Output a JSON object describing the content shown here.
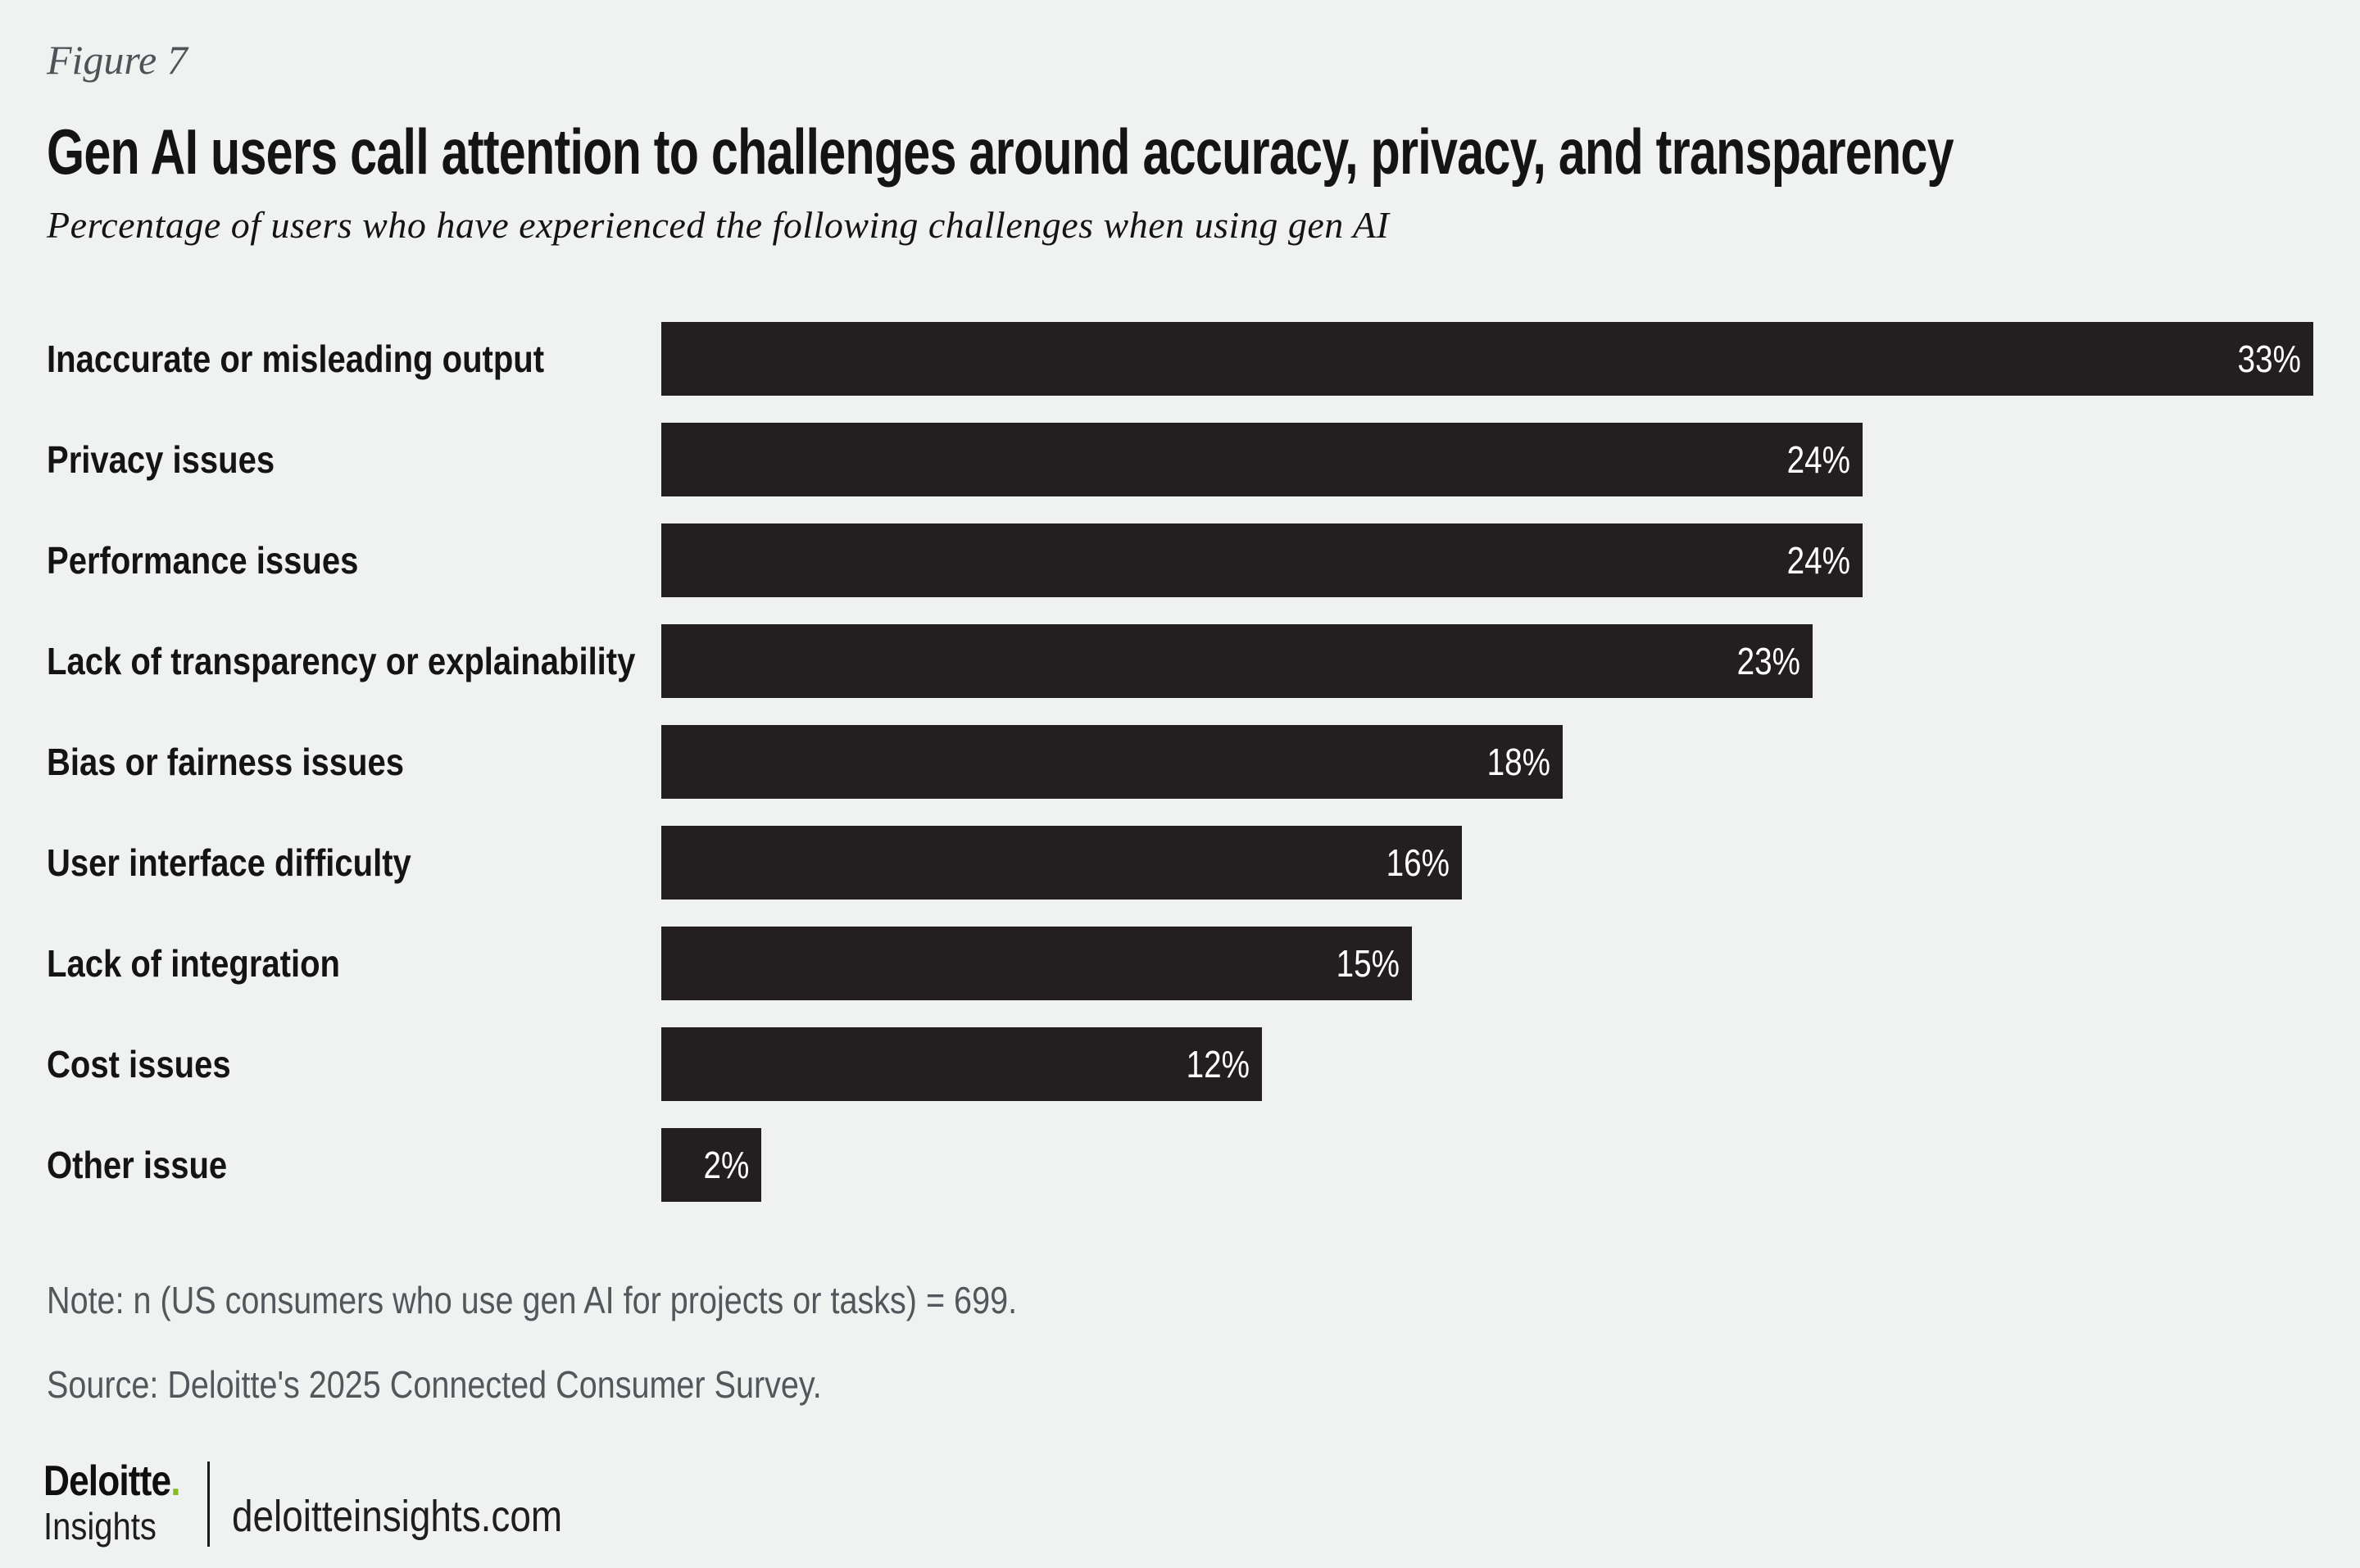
{
  "figure_label": "Figure 7",
  "title": "Gen AI users call attention to challenges around accuracy, privacy, and transparency",
  "subtitle": "Percentage of users who have experienced the following challenges when using gen AI",
  "chart_data": {
    "type": "bar",
    "orientation": "horizontal",
    "categories": [
      "Inaccurate or misleading output",
      "Privacy issues",
      "Performance issues",
      "Lack of transparency or explainability",
      "Bias or fairness issues",
      "User interface difficulty",
      "Lack of integration",
      "Cost issues",
      "Other issue"
    ],
    "values": [
      33,
      24,
      24,
      23,
      18,
      16,
      15,
      12,
      2
    ],
    "value_suffix": "%",
    "value_label_position": "inside-end",
    "xlim": [
      0,
      33
    ],
    "grid": false,
    "legend": "none"
  },
  "note": "Note: n (US consumers who use gen AI for projects or tasks) = 699.",
  "source": "Source: Deloitte's 2025 Connected Consumer Survey.",
  "footer": {
    "brand": "Deloitte",
    "brand_dot": ".",
    "brand_sub": "Insights",
    "site": "deloitteinsights.com"
  },
  "colors": {
    "background": "#F0F1F1",
    "bar": "#231F20",
    "text_dark": "#141414",
    "muted": "#53565A",
    "muted_dark": "#4F5256",
    "accent_green": "#86BC25",
    "value_text": "#FFFFFF"
  }
}
